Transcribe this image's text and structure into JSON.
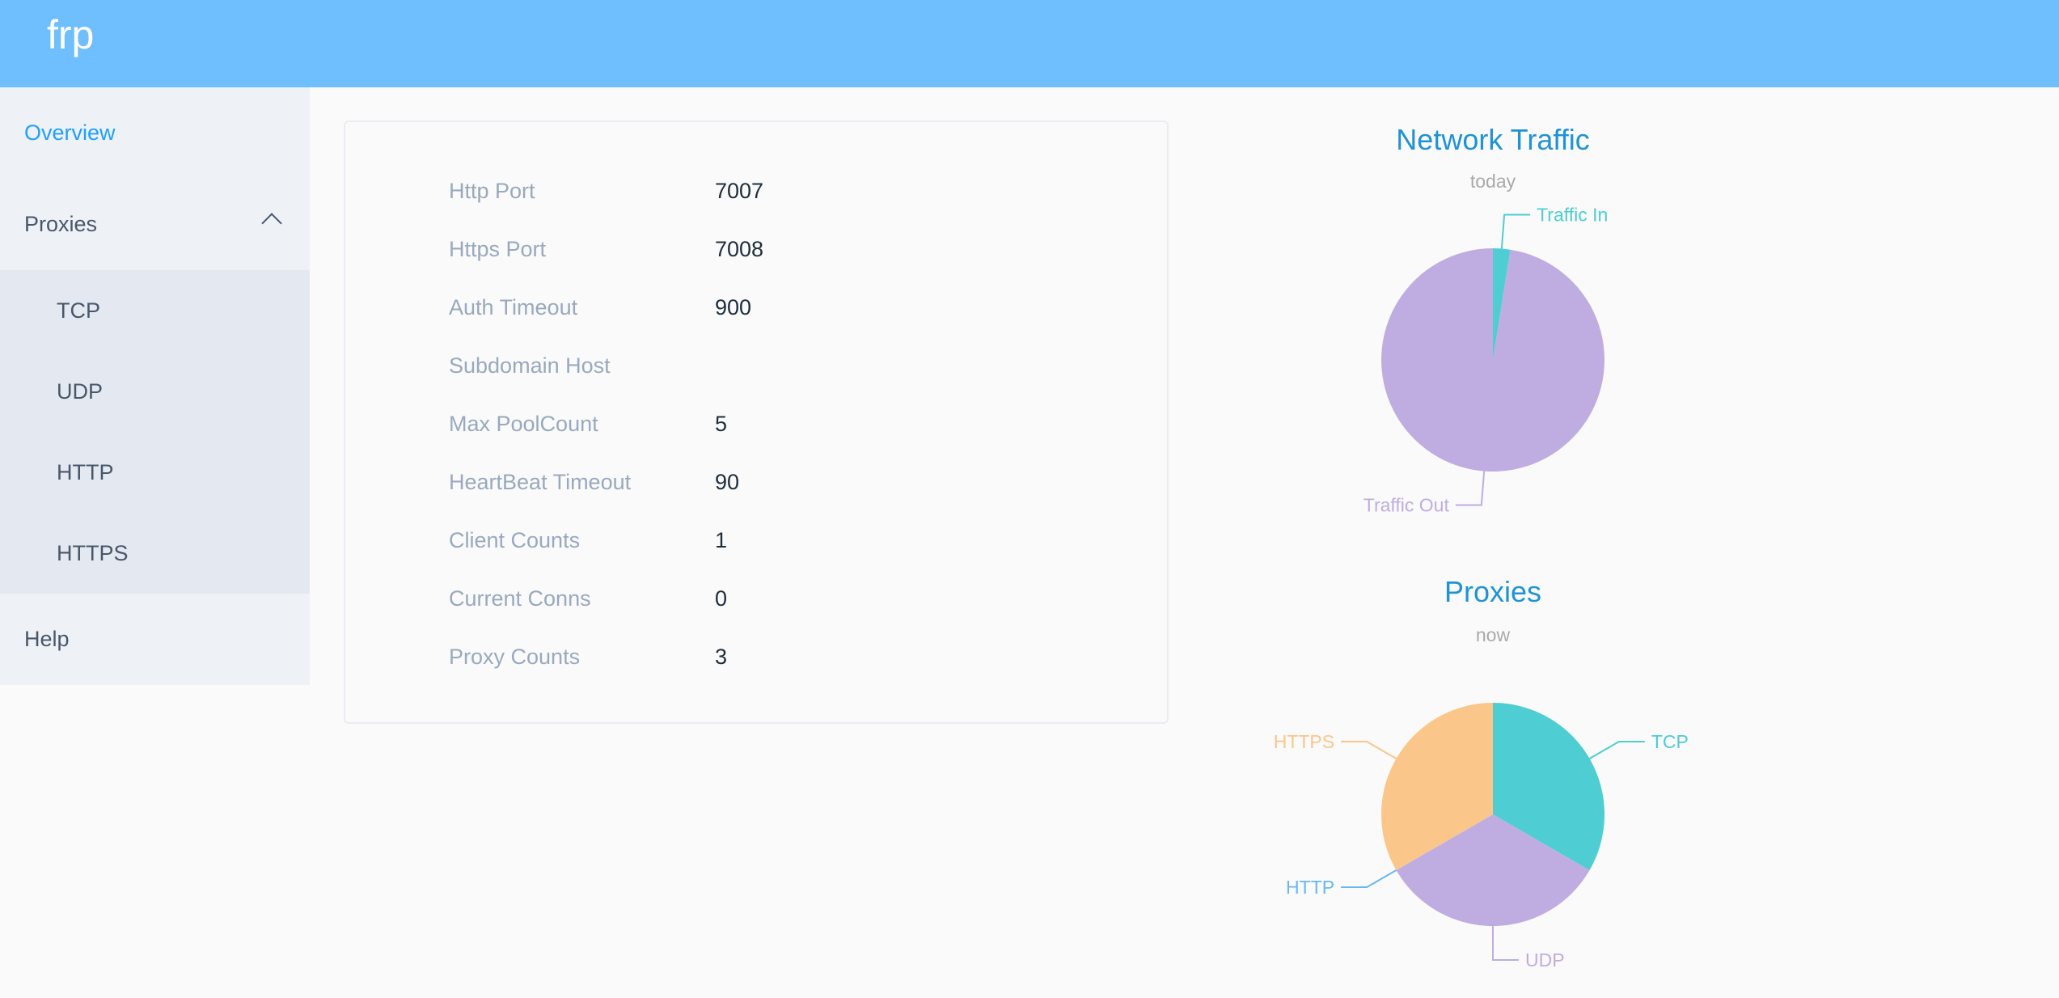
{
  "header": {
    "brand": "frp"
  },
  "sidebar": {
    "overview": "Overview",
    "proxies": "Proxies",
    "proxy_items": [
      "TCP",
      "UDP",
      "HTTP",
      "HTTPS"
    ],
    "help": "Help",
    "proxies_icon": "chevron-up-icon"
  },
  "server_info": [
    {
      "label": "Http Port",
      "value": "7007"
    },
    {
      "label": "Https Port",
      "value": "7008"
    },
    {
      "label": "Auth Timeout",
      "value": "900"
    },
    {
      "label": "Subdomain Host",
      "value": ""
    },
    {
      "label": "Max PoolCount",
      "value": "5"
    },
    {
      "label": "HeartBeat Timeout",
      "value": "90"
    },
    {
      "label": "Client Counts",
      "value": "1"
    },
    {
      "label": "Current Conns",
      "value": "0"
    },
    {
      "label": "Proxy Counts",
      "value": "3"
    }
  ],
  "colors": {
    "header": "#6fbffe",
    "accent": "#20a0ff"
  },
  "chart_data": [
    {
      "type": "pie",
      "title": "Network Traffic",
      "subtitle": "today",
      "slices": [
        {
          "name": "Traffic In",
          "value": 2.5,
          "color": "#4ecdd2"
        },
        {
          "name": "Traffic Out",
          "value": 97.5,
          "color": "#bfade2"
        }
      ]
    },
    {
      "type": "pie",
      "title": "Proxies",
      "subtitle": "now",
      "slices": [
        {
          "name": "TCP",
          "value": 1,
          "color": "#4ecdd2"
        },
        {
          "name": "UDP",
          "value": 1,
          "color": "#bfade2"
        },
        {
          "name": "HTTP",
          "value": 0,
          "color": "#6bb7f0"
        },
        {
          "name": "HTTPS",
          "value": 1,
          "color": "#fbc68a"
        }
      ]
    }
  ]
}
